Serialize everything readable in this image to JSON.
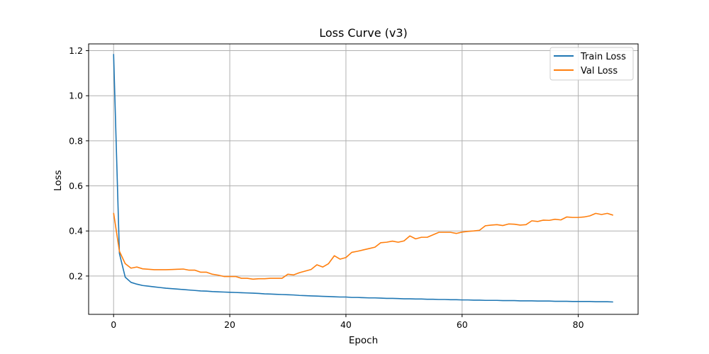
{
  "chart_data": {
    "type": "line",
    "title": "Loss Curve (v3)",
    "xlabel": "Epoch",
    "ylabel": "Loss",
    "xlim": [
      -4.3,
      90.3
    ],
    "ylim": [
      0.03,
      1.23
    ],
    "xticks": [
      0,
      20,
      40,
      60,
      80
    ],
    "yticks": [
      0.2,
      0.4,
      0.6,
      0.8,
      1.0,
      1.2
    ],
    "xtick_labels": [
      "0",
      "20",
      "40",
      "60",
      "80"
    ],
    "ytick_labels": [
      "0.2",
      "0.4",
      "0.6",
      "0.8",
      "1.0",
      "1.2"
    ],
    "grid": true,
    "legend_position": "top-right",
    "x": [
      0,
      1,
      2,
      3,
      4,
      5,
      6,
      7,
      8,
      9,
      10,
      11,
      12,
      13,
      14,
      15,
      16,
      17,
      18,
      19,
      20,
      21,
      22,
      23,
      24,
      25,
      26,
      27,
      28,
      29,
      30,
      31,
      32,
      33,
      34,
      35,
      36,
      37,
      38,
      39,
      40,
      41,
      42,
      43,
      44,
      45,
      46,
      47,
      48,
      49,
      50,
      51,
      52,
      53,
      54,
      55,
      56,
      57,
      58,
      59,
      60,
      61,
      62,
      63,
      64,
      65,
      66,
      67,
      68,
      69,
      70,
      71,
      72,
      73,
      74,
      75,
      76,
      77,
      78,
      79,
      80,
      81,
      82,
      83,
      84,
      85,
      86
    ],
    "series": [
      {
        "name": "Train Loss",
        "color": "#1f77b4",
        "values": [
          1.185,
          0.3,
          0.195,
          0.172,
          0.164,
          0.158,
          0.155,
          0.152,
          0.149,
          0.146,
          0.144,
          0.142,
          0.14,
          0.138,
          0.136,
          0.134,
          0.133,
          0.131,
          0.13,
          0.129,
          0.128,
          0.127,
          0.126,
          0.125,
          0.124,
          0.123,
          0.121,
          0.12,
          0.119,
          0.118,
          0.117,
          0.116,
          0.114,
          0.113,
          0.112,
          0.111,
          0.11,
          0.109,
          0.108,
          0.107,
          0.107,
          0.105,
          0.105,
          0.104,
          0.103,
          0.103,
          0.102,
          0.101,
          0.101,
          0.1,
          0.099,
          0.099,
          0.098,
          0.098,
          0.097,
          0.097,
          0.096,
          0.096,
          0.095,
          0.095,
          0.094,
          0.094,
          0.093,
          0.093,
          0.092,
          0.092,
          0.092,
          0.091,
          0.091,
          0.091,
          0.09,
          0.09,
          0.09,
          0.089,
          0.089,
          0.089,
          0.088,
          0.088,
          0.088,
          0.087,
          0.087,
          0.087,
          0.087,
          0.086,
          0.086,
          0.086,
          0.085
        ]
      },
      {
        "name": "Val Loss",
        "color": "#ff7f0e",
        "values": [
          0.48,
          0.31,
          0.255,
          0.235,
          0.24,
          0.232,
          0.23,
          0.228,
          0.228,
          0.228,
          0.229,
          0.23,
          0.231,
          0.226,
          0.226,
          0.217,
          0.217,
          0.208,
          0.204,
          0.198,
          0.198,
          0.198,
          0.19,
          0.19,
          0.186,
          0.188,
          0.188,
          0.19,
          0.19,
          0.19,
          0.208,
          0.205,
          0.215,
          0.222,
          0.229,
          0.25,
          0.24,
          0.255,
          0.29,
          0.275,
          0.282,
          0.305,
          0.31,
          0.316,
          0.322,
          0.328,
          0.348,
          0.35,
          0.355,
          0.35,
          0.356,
          0.378,
          0.365,
          0.372,
          0.372,
          0.383,
          0.394,
          0.394,
          0.394,
          0.389,
          0.395,
          0.398,
          0.4,
          0.403,
          0.423,
          0.426,
          0.428,
          0.424,
          0.431,
          0.43,
          0.426,
          0.428,
          0.445,
          0.442,
          0.448,
          0.447,
          0.452,
          0.449,
          0.462,
          0.46,
          0.46,
          0.462,
          0.467,
          0.478,
          0.473,
          0.478,
          0.47
        ]
      }
    ]
  }
}
